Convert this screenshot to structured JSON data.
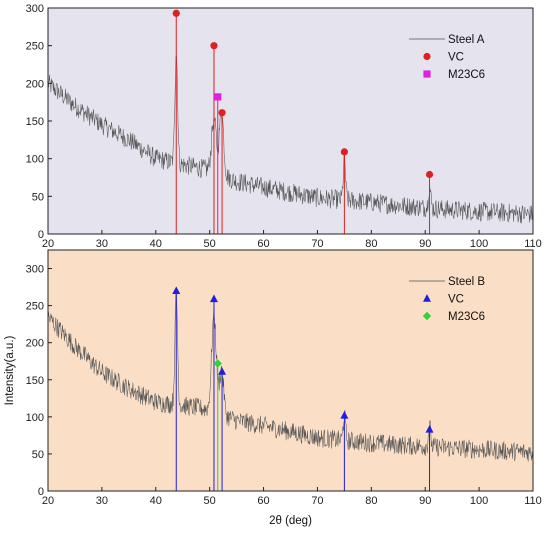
{
  "chart_data": [
    {
      "type": "line",
      "panel": "top",
      "background": "#e4e3ee",
      "xlim": [
        20,
        110
      ],
      "ylim": [
        0,
        300
      ],
      "x_ticks": [
        20,
        30,
        40,
        50,
        60,
        70,
        80,
        90,
        100,
        110
      ],
      "y_ticks": [
        0,
        50,
        100,
        150,
        200,
        250,
        300
      ],
      "xlabel": "",
      "ylabel": "",
      "legend_position": "top-right",
      "series": [
        {
          "name": "Steel A",
          "color": "#555555",
          "baseline": [
            [
              20,
              200
            ],
            [
              25,
              170
            ],
            [
              30,
              145
            ],
            [
              35,
              125
            ],
            [
              40,
              100
            ],
            [
              45,
              92
            ],
            [
              50,
              85
            ],
            [
              55,
              70
            ],
            [
              60,
              62
            ],
            [
              65,
              55
            ],
            [
              70,
              48
            ],
            [
              75,
              45
            ],
            [
              80,
              42
            ],
            [
              85,
              38
            ],
            [
              90,
              35
            ],
            [
              95,
              32
            ],
            [
              100,
              30
            ],
            [
              105,
              28
            ],
            [
              110,
              26
            ]
          ],
          "peaks": [
            [
              43.8,
              150,
              0.35
            ],
            [
              50.8,
              70,
              0.6
            ],
            [
              52.2,
              85,
              0.55
            ],
            [
              75,
              55,
              0.3
            ],
            [
              90.8,
              28,
              0.3
            ]
          ]
        }
      ],
      "markers": [
        {
          "name": "VC",
          "shape": "circle",
          "color": "#e0201f",
          "line_color": "#e0201f",
          "points": [
            [
              43.8,
              293
            ],
            [
              50.8,
              250
            ],
            [
              52.3,
              161
            ],
            [
              75,
              109
            ],
            [
              90.8,
              79
            ]
          ]
        },
        {
          "name": "M23C6",
          "shape": "square",
          "color": "#e020e0",
          "line_color": "#e0207a",
          "points": [
            [
              51.5,
              182
            ]
          ]
        }
      ],
      "legend": [
        {
          "label": "Steel A",
          "kind": "line"
        },
        {
          "label": "VC",
          "kind": "circle"
        },
        {
          "label": "M23C6",
          "kind": "square"
        }
      ]
    },
    {
      "type": "line",
      "panel": "bottom",
      "background": "#fadfc6",
      "xlim": [
        20,
        110
      ],
      "ylim": [
        0,
        325
      ],
      "x_ticks": [
        20,
        30,
        40,
        50,
        60,
        70,
        80,
        90,
        100,
        110
      ],
      "y_ticks": [
        0,
        50,
        100,
        150,
        200,
        250,
        300
      ],
      "xlabel": "2θ (deg)",
      "ylabel": "Intensity(a.u.)",
      "legend_position": "top-right",
      "series": [
        {
          "name": "Steel B",
          "color": "#555555",
          "baseline": [
            [
              20,
              235
            ],
            [
              25,
              195
            ],
            [
              30,
              160
            ],
            [
              35,
              138
            ],
            [
              40,
              120
            ],
            [
              45,
              115
            ],
            [
              50,
              110
            ],
            [
              55,
              95
            ],
            [
              60,
              88
            ],
            [
              65,
              80
            ],
            [
              70,
              72
            ],
            [
              75,
              68
            ],
            [
              80,
              65
            ],
            [
              85,
              62
            ],
            [
              90,
              60
            ],
            [
              95,
              58
            ],
            [
              100,
              56
            ],
            [
              105,
              54
            ],
            [
              110,
              52
            ]
          ],
          "peaks": [
            [
              43.8,
              150,
              0.35
            ],
            [
              50.8,
              130,
              0.6
            ],
            [
              52.2,
              60,
              0.55
            ],
            [
              75,
              35,
              0.3
            ],
            [
              90.8,
              28,
              0.3
            ]
          ]
        }
      ],
      "markers": [
        {
          "name": "VC",
          "shape": "triangle",
          "color": "#1f1fe0",
          "line_color": "#1f1fe0",
          "points": [
            [
              43.8,
              270
            ],
            [
              50.8,
              259
            ],
            [
              52.3,
              161
            ],
            [
              75,
              102
            ],
            [
              90.8,
              83
            ]
          ]
        },
        {
          "name": "M23C6",
          "shape": "diamond",
          "color": "#35d135",
          "line_color": "#35d135",
          "points": [
            [
              51.5,
              172
            ]
          ]
        }
      ],
      "legend": [
        {
          "label": "Steel B",
          "kind": "line"
        },
        {
          "label": "VC",
          "kind": "triangle"
        },
        {
          "label": "M23C6",
          "kind": "diamond"
        }
      ]
    }
  ]
}
